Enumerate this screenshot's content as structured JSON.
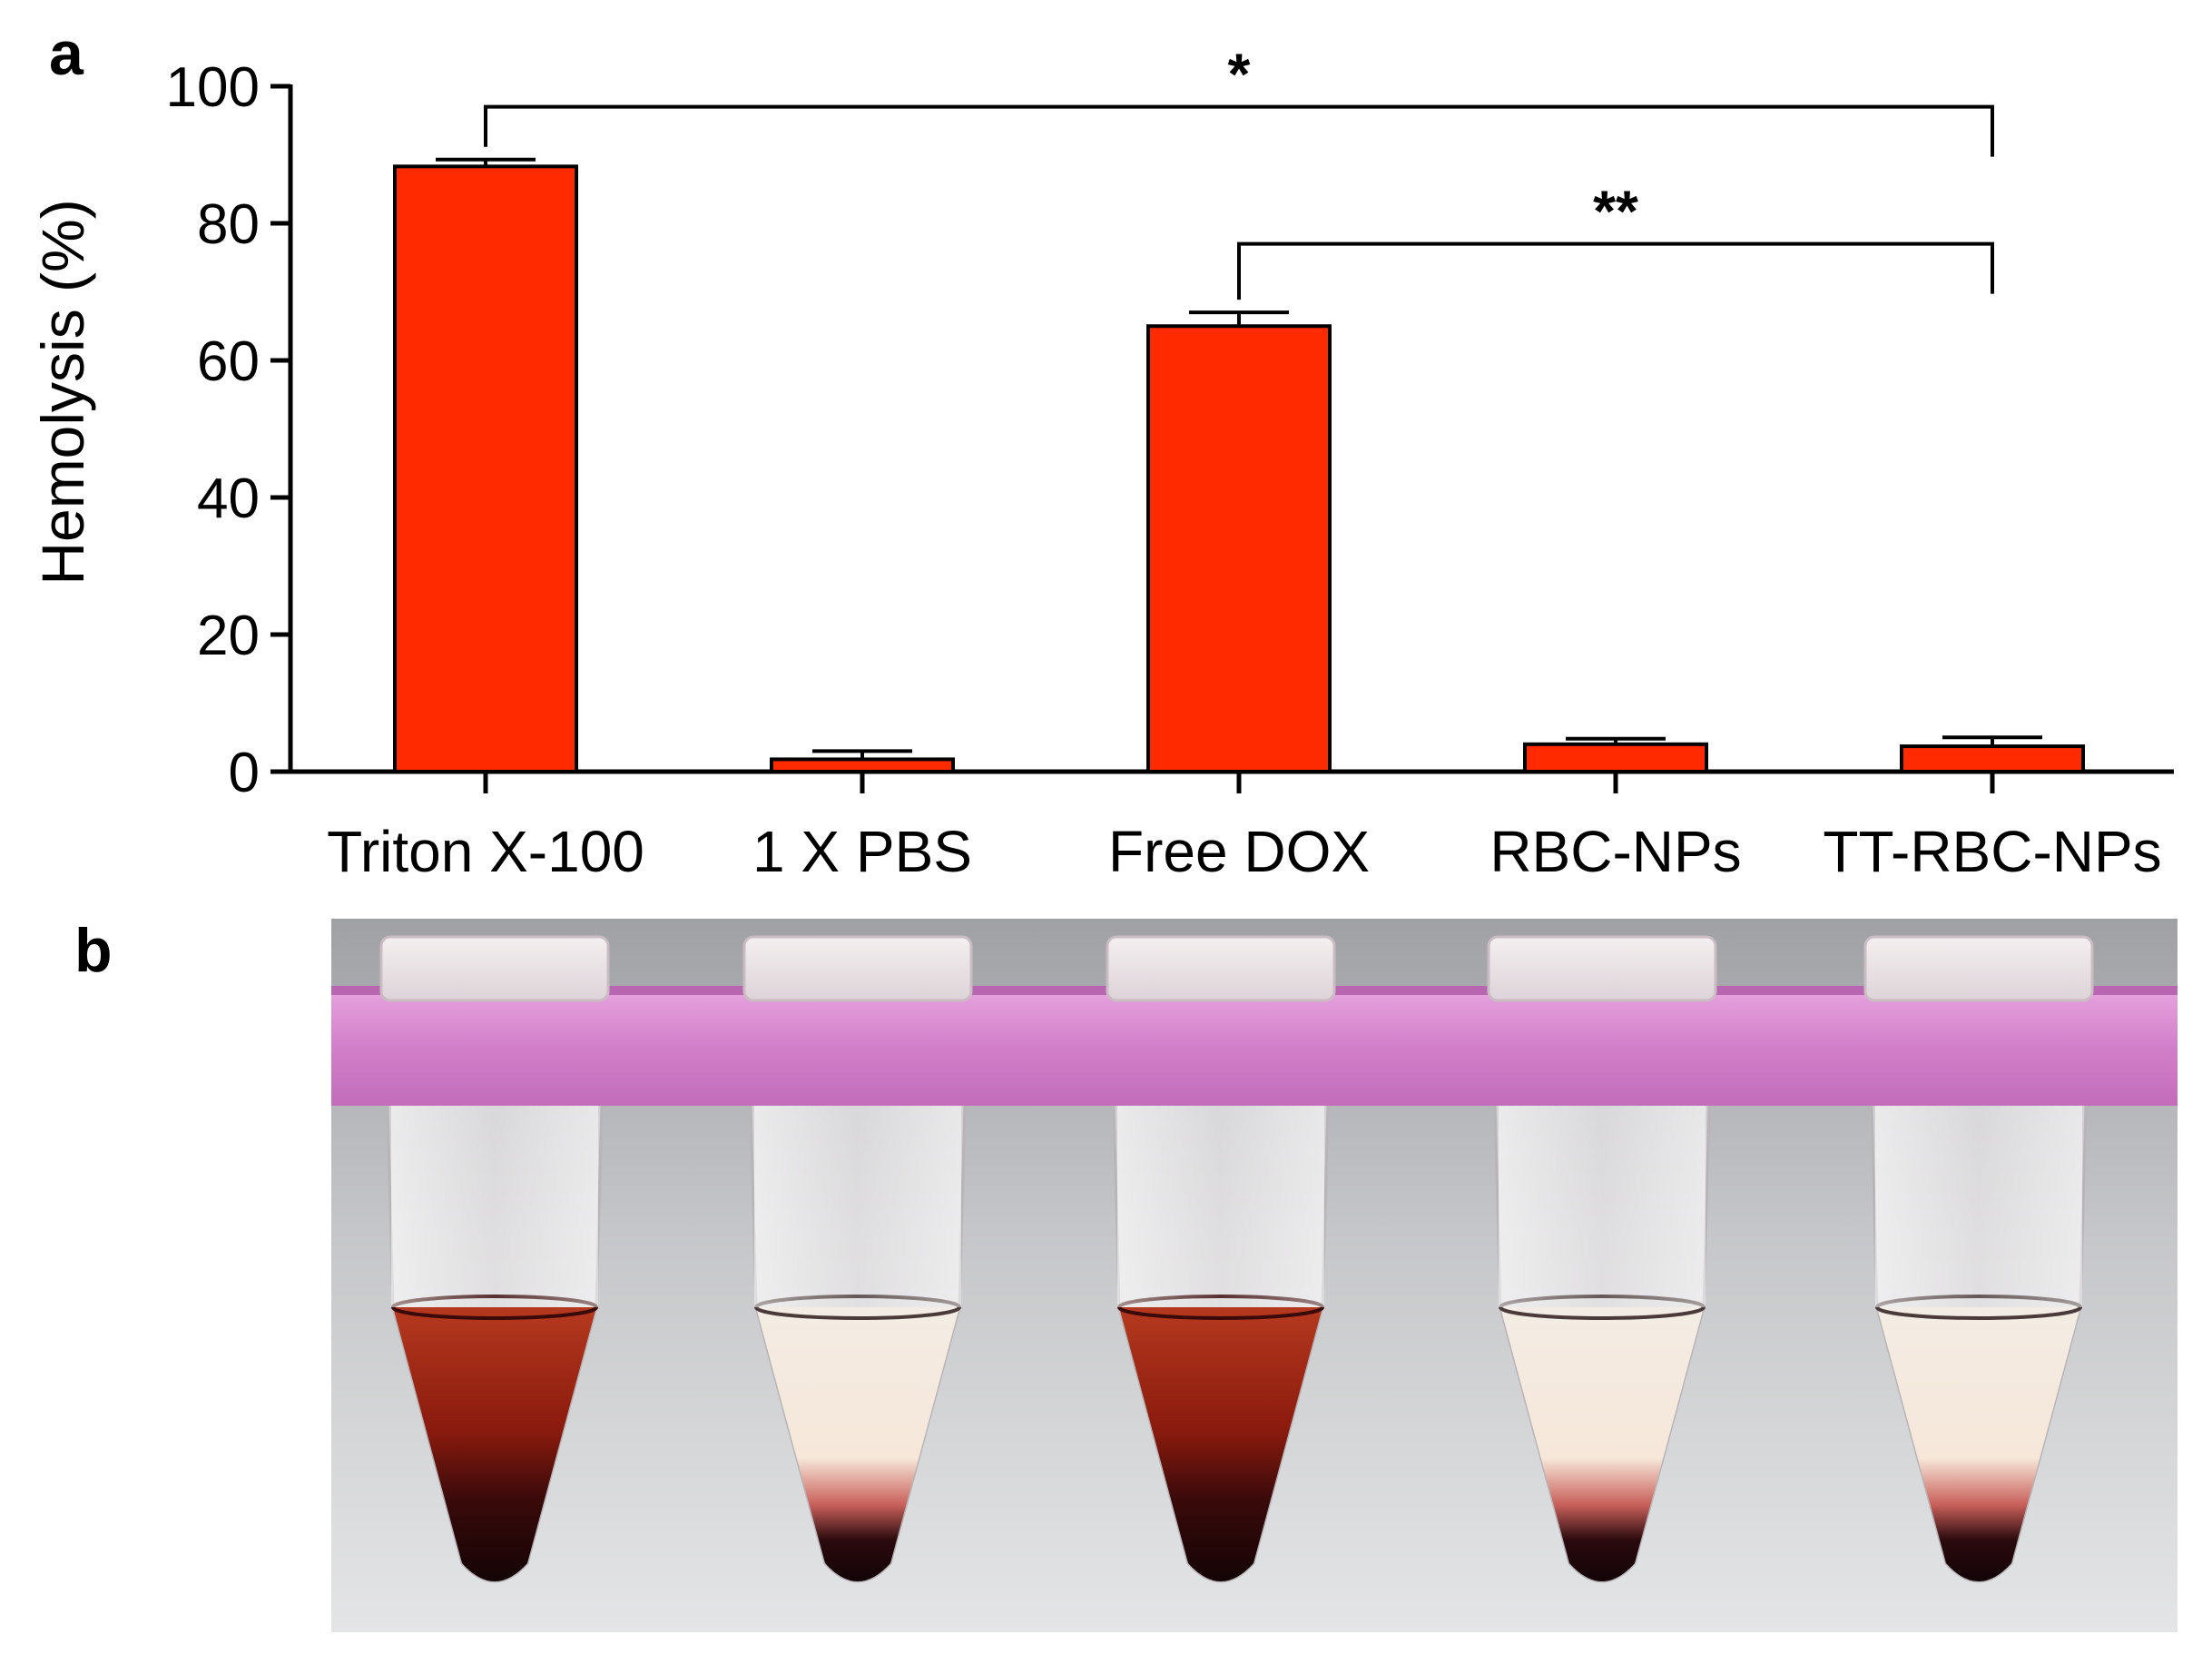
{
  "panel_a_label": "a",
  "panel_b_label": "b",
  "chart_data": {
    "type": "bar",
    "title": "",
    "xlabel": "",
    "ylabel": "Hemolysis (%)",
    "ylim": [
      0,
      100
    ],
    "yticks": [
      0,
      20,
      40,
      60,
      80,
      100
    ],
    "categories": [
      "Triton X-100",
      "1 X PBS",
      "Free DOX",
      "RBC-NPs",
      "TT-RBC-NPs"
    ],
    "values": [
      88.3,
      1.8,
      65.0,
      4.0,
      3.7
    ],
    "errors": [
      1.0,
      1.2,
      2.0,
      0.8,
      1.3
    ],
    "bar_color": "#ff2a00",
    "significance": [
      {
        "from": 0,
        "to": 4,
        "label": "*",
        "level": 97
      },
      {
        "from": 2,
        "to": 4,
        "label": "**",
        "level": 77
      }
    ]
  },
  "photo": {
    "description_tubes": [
      "Triton X-100",
      "1 X PBS",
      "Free DOX",
      "RBC-NPs",
      "TT-RBC-NPs"
    ],
    "rack_color": "#d98ad2",
    "lysed_color": "#a0200c",
    "pellet_color": "#1a0608",
    "clear_color": "#f1ebe2",
    "background_top": "#a7a9ac",
    "background_bottom": "#dfe1e2"
  }
}
